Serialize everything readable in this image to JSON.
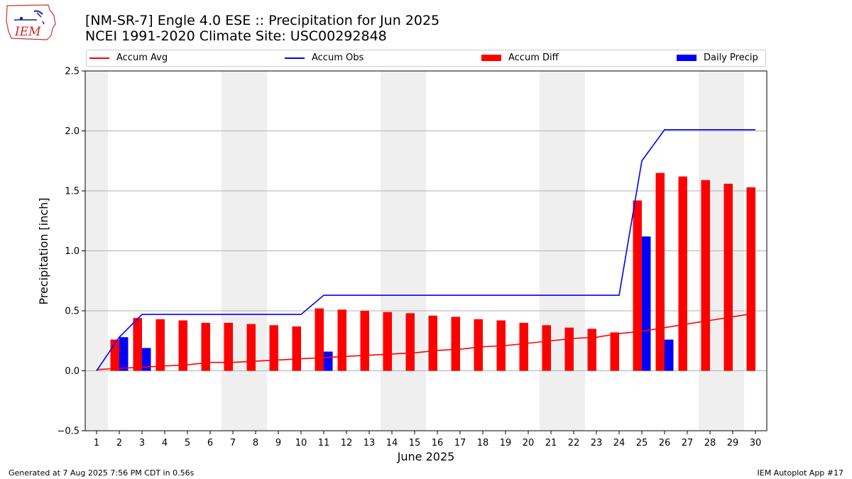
{
  "header": {
    "title_line1": "[NM-SR-7] Engle 4.0 ESE :: Precipitation for Jun 2025",
    "title_line2": "NCEI 1991-2020 Climate Site: USC00292848",
    "logo_text": "IEM"
  },
  "footer": {
    "generated": "Generated at 7 Aug 2025 7:56 PM CDT in 0.56s",
    "app": "IEM Autoplot App #17"
  },
  "legend": {
    "placement": "top",
    "items": [
      {
        "label": "Accum Avg",
        "kind": "line",
        "color": "#ff0000"
      },
      {
        "label": "Accum Obs",
        "kind": "line",
        "color": "#0000ff"
      },
      {
        "label": "Accum Diff",
        "kind": "bar",
        "color": "#ff0000"
      },
      {
        "label": "Daily Precip",
        "kind": "bar",
        "color": "#0000ff"
      }
    ]
  },
  "chart_data": {
    "type": "bar",
    "xlabel": "June 2025",
    "ylabel": "Precipitation [inch]",
    "ylim": [
      -0.5,
      2.5
    ],
    "xlim": [
      1,
      30
    ],
    "yticks": [
      -0.5,
      0.0,
      0.5,
      1.0,
      1.5,
      2.0,
      2.5
    ],
    "ytick_labels": [
      "−0.5",
      "0.0",
      "0.5",
      "1.0",
      "1.5",
      "2.0",
      "2.5"
    ],
    "grid": "horizontal",
    "weekend_shading": [
      [
        1,
        1
      ],
      [
        7,
        8
      ],
      [
        14,
        15
      ],
      [
        21,
        22
      ],
      [
        28,
        29
      ]
    ],
    "x": [
      1,
      2,
      3,
      4,
      5,
      6,
      7,
      8,
      9,
      10,
      11,
      12,
      13,
      14,
      15,
      16,
      17,
      18,
      19,
      20,
      21,
      22,
      23,
      24,
      25,
      26,
      27,
      28,
      29,
      30
    ],
    "series": [
      {
        "name": "Accum Avg",
        "type": "line",
        "color": "#ff0000",
        "values": [
          0.01,
          0.02,
          0.03,
          0.04,
          0.05,
          0.07,
          0.07,
          0.08,
          0.09,
          0.1,
          0.11,
          0.12,
          0.13,
          0.14,
          0.15,
          0.17,
          0.18,
          0.2,
          0.21,
          0.23,
          0.25,
          0.27,
          0.28,
          0.31,
          0.33,
          0.36,
          0.39,
          0.42,
          0.45,
          0.48
        ]
      },
      {
        "name": "Accum Obs",
        "type": "line",
        "color": "#0000ff",
        "values": [
          0.0,
          0.28,
          0.47,
          0.47,
          0.47,
          0.47,
          0.47,
          0.47,
          0.47,
          0.47,
          0.63,
          0.63,
          0.63,
          0.63,
          0.63,
          0.63,
          0.63,
          0.63,
          0.63,
          0.63,
          0.63,
          0.63,
          0.63,
          0.63,
          1.75,
          2.01,
          2.01,
          2.01,
          2.01,
          2.01
        ]
      },
      {
        "name": "Accum Diff",
        "type": "bar",
        "color": "#ff0000",
        "values": [
          0.0,
          0.26,
          0.44,
          0.43,
          0.42,
          0.4,
          0.4,
          0.39,
          0.38,
          0.37,
          0.52,
          0.51,
          0.5,
          0.49,
          0.48,
          0.46,
          0.45,
          0.43,
          0.42,
          0.4,
          0.38,
          0.36,
          0.35,
          0.32,
          1.42,
          1.65,
          1.62,
          1.59,
          1.56,
          1.53
        ]
      },
      {
        "name": "Daily Precip",
        "type": "bar",
        "color": "#0000ff",
        "values": [
          0.0,
          0.28,
          0.19,
          0.0,
          0.0,
          0.0,
          0.0,
          0.0,
          0.0,
          0.0,
          0.16,
          0.0,
          0.0,
          0.0,
          0.0,
          0.0,
          0.0,
          0.0,
          0.0,
          0.0,
          0.0,
          0.0,
          0.0,
          0.0,
          1.12,
          0.26,
          0.0,
          0.0,
          0.0,
          0.0
        ]
      }
    ]
  }
}
